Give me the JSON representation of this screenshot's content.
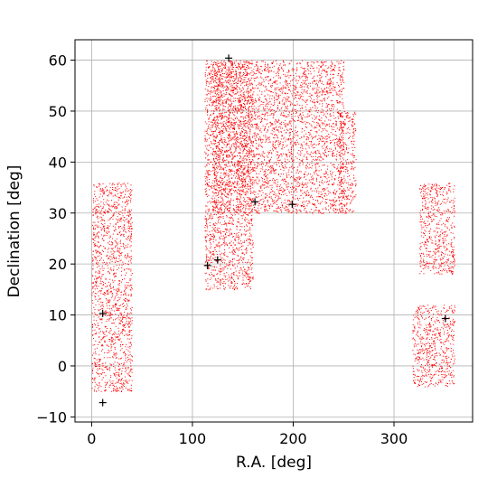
{
  "chart_data": {
    "type": "scatter",
    "title": "",
    "xlabel": "R.A. [deg]",
    "ylabel": "Declination [deg]",
    "xlim": [
      -16.5,
      378
    ],
    "ylim": [
      -11,
      64
    ],
    "xticks": [
      0,
      100,
      200,
      300
    ],
    "xtick_labels": [
      "0",
      "100",
      "200",
      "300"
    ],
    "yticks": [
      -10,
      0,
      10,
      20,
      30,
      40,
      50,
      60
    ],
    "ytick_labels": [
      "−10",
      "0",
      "10",
      "20",
      "30",
      "40",
      "50",
      "60"
    ],
    "grid": true,
    "series": [
      {
        "marker": "dot",
        "color": "#ff0000",
        "regions": [
          {
            "ra": [
              0,
              40
            ],
            "dec": [
              -5,
              36
            ]
          },
          {
            "ra": [
              112,
              160
            ],
            "dec": [
              15,
              60
            ]
          },
          {
            "ra": [
              120,
              250
            ],
            "dec": [
              30,
              60
            ]
          },
          {
            "ra": [
              245,
              262
            ],
            "dec": [
              30,
              50
            ]
          },
          {
            "ra": [
              318,
              360
            ],
            "dec": [
              -4,
              12
            ]
          },
          {
            "ra": [
              325,
              360
            ],
            "dec": [
              18,
              36
            ]
          }
        ]
      },
      {
        "marker": "plus",
        "color": "#000000",
        "points": [
          {
            "x": 11,
            "y": -7.2
          },
          {
            "x": 11,
            "y": 10.3
          },
          {
            "x": 115,
            "y": 19.7
          },
          {
            "x": 125,
            "y": 20.8
          },
          {
            "x": 136,
            "y": 60.4
          },
          {
            "x": 162,
            "y": 32.2
          },
          {
            "x": 199,
            "y": 31.7
          },
          {
            "x": 351,
            "y": 9.3
          }
        ]
      }
    ]
  }
}
